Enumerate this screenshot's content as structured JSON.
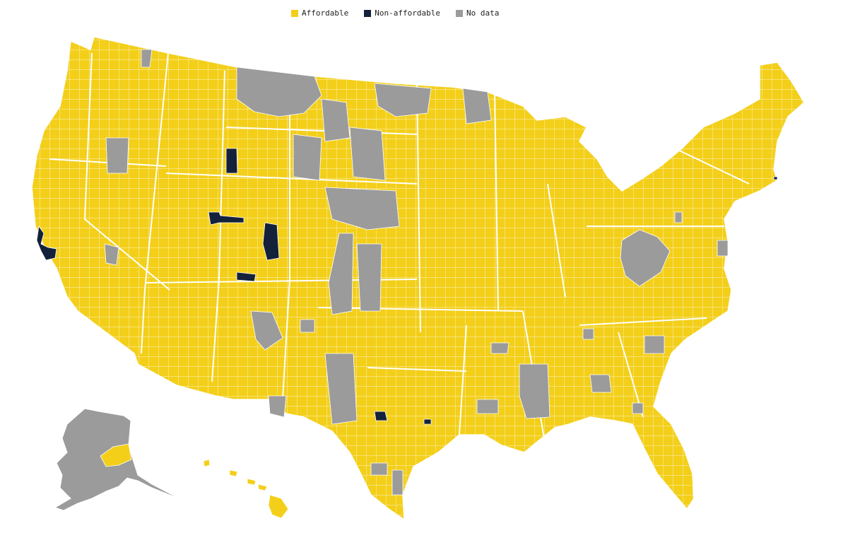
{
  "legend": {
    "items": [
      {
        "label": "Affordable",
        "color": "#F3CF1A"
      },
      {
        "label": "Non-affordable",
        "color": "#13213A"
      },
      {
        "label": "No data",
        "color": "#9B9B9B"
      }
    ]
  },
  "colors": {
    "affordable": "#F3CF1A",
    "non_affordable": "#13213A",
    "no_data": "#9B9B9B",
    "border": "#ffffff"
  }
}
